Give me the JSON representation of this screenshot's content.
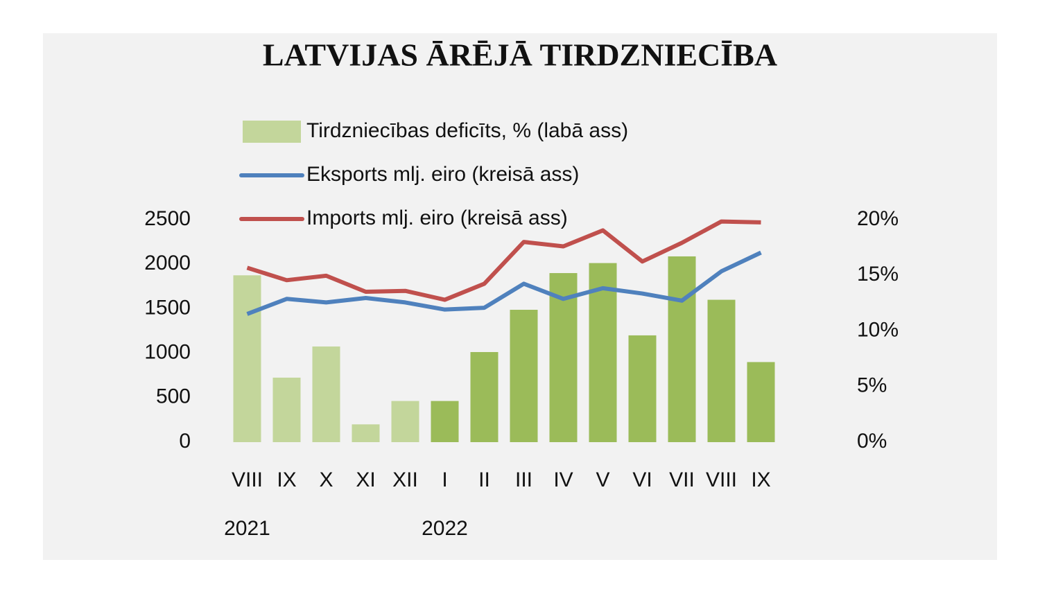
{
  "chart_data": {
    "type": "combo",
    "title": "LATVIJAS ĀRĒJĀ TIRDZNIECĪBA",
    "categories": [
      "VIII",
      "IX",
      "X",
      "XI",
      "XII",
      "I",
      "II",
      "III",
      "IV",
      "V",
      "VI",
      "VII",
      "VIII",
      "IX"
    ],
    "x_group_labels": [
      {
        "label": "2021",
        "category": 0
      },
      {
        "label": "2022",
        "category": 5
      }
    ],
    "series": [
      {
        "name": "Tirdzniecības deficīts, % (labā ass)",
        "type": "bar",
        "axis": "y2",
        "color": "#c3d69b",
        "colors": [
          "#c3d69b",
          "#c3d69b",
          "#c3d69b",
          "#c3d69b",
          "#c3d69b",
          "#9bbb59",
          "#9bbb59",
          "#9bbb59",
          "#9bbb59",
          "#9bbb59",
          "#9bbb59",
          "#9bbb59",
          "#9bbb59",
          "#9bbb59"
        ],
        "values": [
          15.0,
          5.8,
          8.6,
          1.6,
          3.7,
          3.7,
          8.1,
          11.9,
          15.2,
          16.1,
          9.6,
          16.7,
          12.8,
          7.2
        ]
      },
      {
        "name": "Eksports mlj. eiro (kreisā ass)",
        "type": "line",
        "color": "#4f81bd",
        "values": [
          1440,
          1610,
          1570,
          1620,
          1570,
          1490,
          1510,
          1780,
          1610,
          1730,
          1670,
          1590,
          1920,
          2130
        ]
      },
      {
        "name": "Imports mlj. eiro (kreisā ass)",
        "type": "line",
        "color": "#c0504d",
        "values": [
          1960,
          1820,
          1870,
          1690,
          1700,
          1600,
          1780,
          2250,
          2200,
          2380,
          2030,
          2240,
          2480,
          2470
        ]
      }
    ],
    "ylim": [
      0,
      2500
    ],
    "yticks": [
      0,
      500,
      1000,
      1500,
      2000,
      2500
    ],
    "y2lim": [
      0,
      20
    ],
    "y2ticks": [
      {
        "value": 0,
        "label": "0%"
      },
      {
        "value": 5,
        "label": "5%"
      },
      {
        "value": 10,
        "label": "10%"
      },
      {
        "value": 15,
        "label": "15%"
      },
      {
        "value": 20,
        "label": "20%"
      }
    ],
    "grid": false
  }
}
